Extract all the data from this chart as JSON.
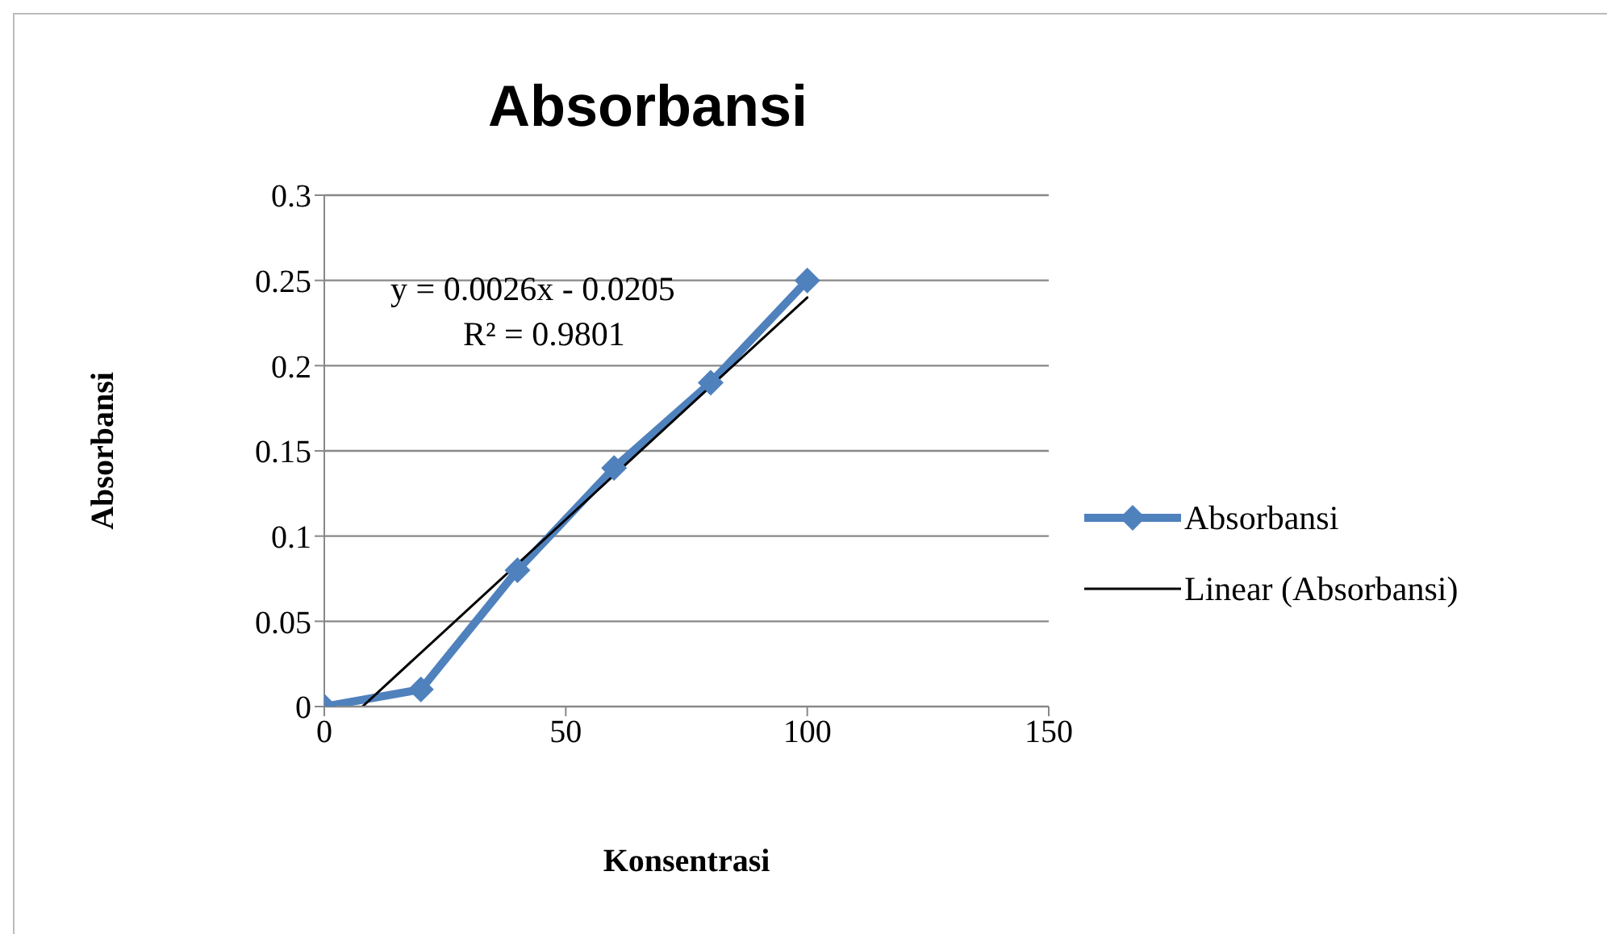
{
  "chart_data": {
    "type": "line",
    "title": "Absorbansi",
    "xlabel": "Konsentrasi",
    "ylabel": "Absorbansi",
    "xlim": [
      0,
      150
    ],
    "xticks": [
      0,
      50,
      100,
      150
    ],
    "ylim": [
      0,
      0.3
    ],
    "yticks": [
      0,
      0.05,
      0.1,
      0.15,
      0.2,
      0.25,
      0.3
    ],
    "grid": "y",
    "legend": "right",
    "annotations": [
      "y = 0.0026x - 0.0205",
      "R² = 0.9801"
    ],
    "series": [
      {
        "name": "Absorbansi",
        "color": "#4f81bd",
        "x": [
          0,
          20,
          40,
          60,
          80,
          100
        ],
        "values": [
          0,
          0.01,
          0.08,
          0.14,
          0.19,
          0.25
        ],
        "marker": "diamond",
        "line_style": "solid"
      },
      {
        "name": "Linear (Absorbansi)",
        "color": "#000000",
        "x": [
          7.9,
          100
        ],
        "values": [
          0,
          0.24
        ],
        "marker": "none",
        "line_style": "solid"
      }
    ]
  }
}
